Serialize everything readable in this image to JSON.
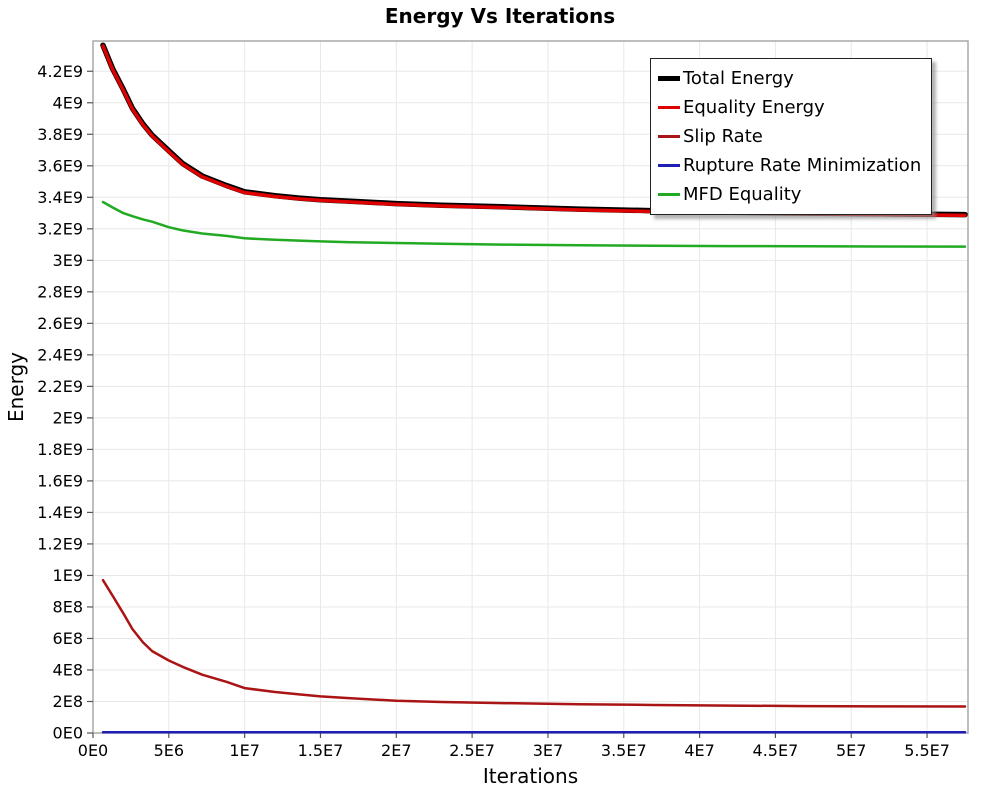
{
  "title": "Energy Vs Iterations",
  "x_axis_label": "Iterations",
  "y_axis_label": "Energy",
  "chart_data": {
    "type": "line",
    "title": "Energy Vs Iterations",
    "xlabel": "Iterations",
    "ylabel": "Energy",
    "xlim": [
      0,
      57700000.0
    ],
    "ylim": [
      0,
      4392000000.0
    ],
    "grid": true,
    "legend_position": "top-right",
    "x_tick_values": [
      0,
      5000000.0,
      10000000.0,
      15000000.0,
      20000000.0,
      25000000.0,
      30000000.0,
      35000000.0,
      40000000.0,
      45000000.0,
      50000000.0,
      55000000.0
    ],
    "x_tick_labels": [
      "0E0",
      "5E6",
      "1E7",
      "1.5E7",
      "2E7",
      "2.5E7",
      "3E7",
      "3.5E7",
      "4E7",
      "4.5E7",
      "5E7",
      "5.5E7"
    ],
    "y_tick_values": [
      0,
      200000000.0,
      400000000.0,
      600000000.0,
      800000000.0,
      1000000000.0,
      1200000000.0,
      1400000000.0,
      1600000000.0,
      1800000000.0,
      2000000000.0,
      2200000000.0,
      2400000000.0,
      2600000000.0,
      2800000000.0,
      3000000000.0,
      3200000000.0,
      3400000000.0,
      3600000000.0,
      3800000000.0,
      4000000000.0,
      4200000000.0
    ],
    "y_tick_labels": [
      "0E0",
      "2E8",
      "4E8",
      "6E8",
      "8E8",
      "1E9",
      "1.2E9",
      "1.4E9",
      "1.6E9",
      "1.8E9",
      "2E9",
      "2.2E9",
      "2.4E9",
      "2.6E9",
      "2.8E9",
      "3E9",
      "3.2E9",
      "3.4E9",
      "3.6E9",
      "3.8E9",
      "4E9",
      "4.2E9"
    ],
    "colors": {
      "grid": "#e8e8e8",
      "plot_border": "#a8a8a8",
      "tick": "#555555",
      "text": "#000000",
      "legend_border": "#222222",
      "legend_background": "#ffffff"
    },
    "series": [
      {
        "name": "Total Energy",
        "color": "#000000",
        "line_width": 5.5,
        "x": [
          660000.0,
          1300000.0,
          2000000.0,
          2600000.0,
          3300000.0,
          3900000.0,
          5000000.0,
          5900000.0,
          7200000.0,
          8800000.0,
          10000000.0,
          12000000.0,
          13600000.0,
          15000000.0,
          17000000.0,
          20000000.0,
          23000000.0,
          27000000.0,
          32000000.0,
          37000000.0,
          42000000.0,
          47000000.0,
          52000000.0,
          57500000.0
        ],
        "y": [
          4365000000.0,
          4215000000.0,
          4085000000.0,
          3965000000.0,
          3865000000.0,
          3795000000.0,
          3695000000.0,
          3615000000.0,
          3535000000.0,
          3475000000.0,
          3435000000.0,
          3410000000.0,
          3395000000.0,
          3385000000.0,
          3375000000.0,
          3360000000.0,
          3350000000.0,
          3340000000.0,
          3325000000.0,
          3315000000.0,
          3305000000.0,
          3300000000.0,
          3295000000.0,
          3290000000.0
        ]
      },
      {
        "name": "Equality Energy",
        "color": "#df0000",
        "line_width": 3.5,
        "x": [
          660000.0,
          1300000.0,
          2000000.0,
          2600000.0,
          3300000.0,
          3900000.0,
          5000000.0,
          5900000.0,
          7200000.0,
          8800000.0,
          10000000.0,
          12000000.0,
          13600000.0,
          15000000.0,
          17000000.0,
          20000000.0,
          23000000.0,
          27000000.0,
          32000000.0,
          37000000.0,
          42000000.0,
          47000000.0,
          52000000.0,
          57500000.0
        ],
        "y": [
          4360000000.0,
          4210000000.0,
          4080000000.0,
          3960000000.0,
          3860000000.0,
          3790000000.0,
          3690000000.0,
          3610000000.0,
          3530000000.0,
          3470000000.0,
          3430000000.0,
          3405000000.0,
          3390000000.0,
          3380000000.0,
          3370000000.0,
          3355000000.0,
          3345000000.0,
          3335000000.0,
          3320000000.0,
          3310000000.0,
          3300000000.0,
          3295000000.0,
          3290000000.0,
          3285000000.0
        ]
      },
      {
        "name": "Slip Rate",
        "color": "#aa1414",
        "line_width": 2.5,
        "x": [
          660000.0,
          1300000.0,
          2000000.0,
          2600000.0,
          3300000.0,
          3900000.0,
          5000000.0,
          5900000.0,
          7200000.0,
          8800000.0,
          10000000.0,
          12000000.0,
          13600000.0,
          15000000.0,
          17000000.0,
          20000000.0,
          23000000.0,
          27000000.0,
          32000000.0,
          37000000.0,
          42000000.0,
          47000000.0,
          52000000.0,
          57500000.0
        ],
        "y": [
          970000000.0,
          870000000.0,
          760000000.0,
          660000000.0,
          575000000.0,
          520000000.0,
          460000000.0,
          420000000.0,
          370000000.0,
          325000000.0,
          285000000.0,
          260000000.0,
          245000000.0,
          232000000.0,
          220000000.0,
          205000000.0,
          197000000.0,
          190000000.0,
          183000000.0,
          178000000.0,
          174000000.0,
          171000000.0,
          169000000.0,
          168000000.0
        ]
      },
      {
        "name": "Rupture Rate Minimization",
        "color": "#1f1fb4",
        "line_width": 2.5,
        "x": [
          660000.0,
          57500000.0
        ],
        "y": [
          5000000.0,
          5000000.0
        ]
      },
      {
        "name": "MFD Equality",
        "color": "#22aa22",
        "line_width": 2.5,
        "x": [
          660000.0,
          1300000.0,
          2000000.0,
          2600000.0,
          3300000.0,
          3900000.0,
          5000000.0,
          5900000.0,
          7200000.0,
          8800000.0,
          10000000.0,
          12000000.0,
          13600000.0,
          15000000.0,
          17000000.0,
          20000000.0,
          23000000.0,
          27000000.0,
          32000000.0,
          37000000.0,
          42000000.0,
          47000000.0,
          52000000.0,
          57500000.0
        ],
        "y": [
          3370000000.0,
          3335000000.0,
          3300000000.0,
          3280000000.0,
          3260000000.0,
          3245000000.0,
          3210000000.0,
          3190000000.0,
          3170000000.0,
          3155000000.0,
          3140000000.0,
          3130000000.0,
          3125000000.0,
          3120000000.0,
          3115000000.0,
          3110000000.0,
          3105000000.0,
          3100000000.0,
          3096000000.0,
          3093000000.0,
          3090000000.0,
          3089000000.0,
          3088000000.0,
          3087000000.0
        ]
      }
    ]
  }
}
